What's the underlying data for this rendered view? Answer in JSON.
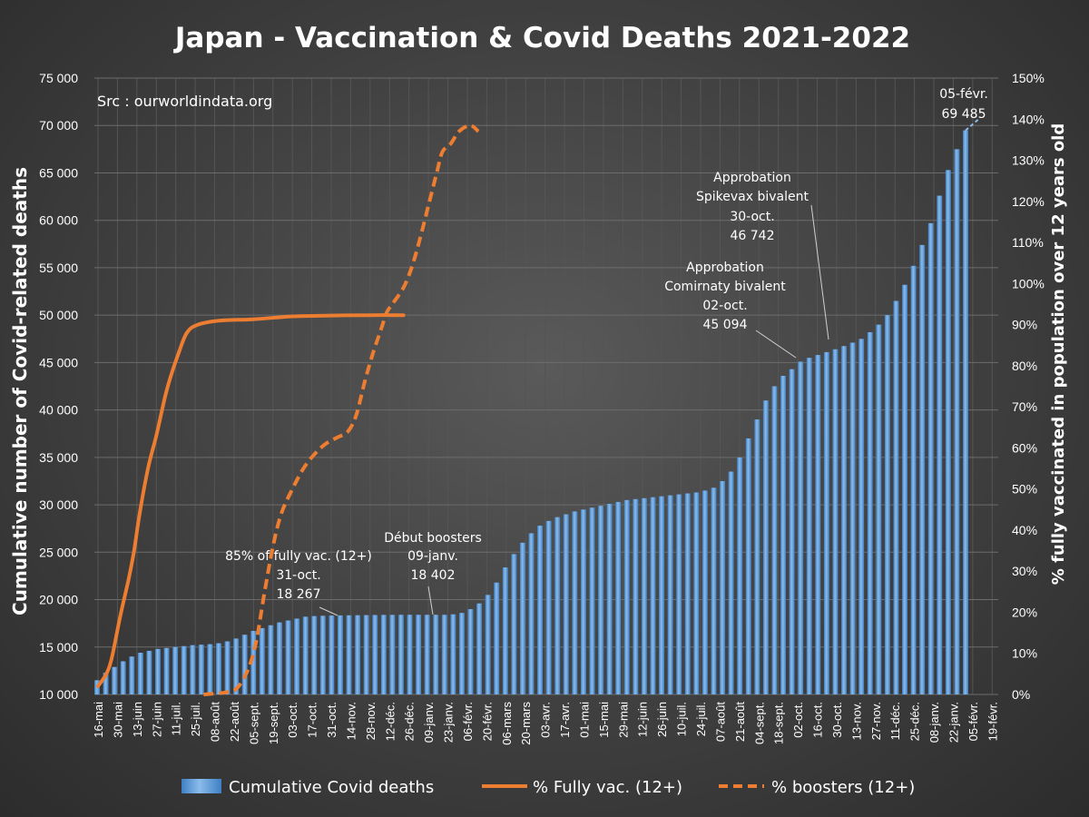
{
  "chart_data": {
    "type": "bar",
    "title": "Japan - Vaccination & Covid Deaths 2021-2022",
    "source": "Src : ourworldindata.org",
    "ylabel": "Cumulative number of Covid-related deaths",
    "y2label": "% fully vaccinated in population over 12 years old",
    "ylim": [
      10000,
      75000
    ],
    "y2lim": [
      0,
      150
    ],
    "yticks": [
      "10 000",
      "15 000",
      "20 000",
      "25 000",
      "30 000",
      "35 000",
      "40 000",
      "45 000",
      "50 000",
      "55 000",
      "60 000",
      "65 000",
      "70 000",
      "75 000"
    ],
    "y2ticks": [
      "0%",
      "10%",
      "20%",
      "30%",
      "40%",
      "50%",
      "60%",
      "70%",
      "80%",
      "90%",
      "100%",
      "110%",
      "120%",
      "130%",
      "140%",
      "150%"
    ],
    "xticks": [
      "16-mai",
      "30-mai",
      "13-juin",
      "27-juin",
      "11-juil.",
      "25-juil.",
      "08-août",
      "22-août",
      "05-sept.",
      "19-sept.",
      "03-oct.",
      "17-oct.",
      "31-oct.",
      "14-nov.",
      "28-nov.",
      "12-déc.",
      "26-déc.",
      "09-janv.",
      "23-janv.",
      "06-févr.",
      "20-févr.",
      "06-mars",
      "20-mars",
      "03-avr.",
      "17-avr.",
      "01-mai",
      "15-mai",
      "29-mai",
      "12-juin",
      "26-juin",
      "10-juil.",
      "24-juil.",
      "07-août",
      "21-août",
      "04-sept.",
      "18-sept.",
      "02-oct.",
      "16-oct.",
      "30-oct.",
      "13-nov.",
      "27-nov.",
      "11-déc.",
      "25-déc.",
      "08-janv.",
      "22-janv.",
      "05-févr.",
      "19-févr."
    ],
    "series": [
      {
        "name": "Cumulative Covid deaths",
        "kind": "bar",
        "values": [
          11500,
          12300,
          12900,
          13500,
          14000,
          14400,
          14600,
          14800,
          14900,
          15000,
          15100,
          15200,
          15250,
          15300,
          15400,
          15600,
          15900,
          16300,
          16700,
          17000,
          17300,
          17600,
          17800,
          18000,
          18200,
          18267,
          18300,
          18320,
          18340,
          18350,
          18360,
          18370,
          18380,
          18390,
          18400,
          18402,
          18402,
          18402,
          18402,
          18402,
          18402,
          18450,
          18600,
          19000,
          19600,
          20500,
          21800,
          23400,
          24800,
          26000,
          27000,
          27800,
          28300,
          28700,
          29000,
          29300,
          29500,
          29700,
          29900,
          30100,
          30300,
          30500,
          30600,
          30700,
          30800,
          30900,
          31000,
          31100,
          31200,
          31300,
          31500,
          31800,
          32500,
          33500,
          35000,
          37000,
          39000,
          41000,
          42500,
          43600,
          44300,
          45094,
          45500,
          45800,
          46100,
          46400,
          46742,
          47100,
          47500,
          48200,
          49000,
          50000,
          51500,
          53200,
          55200,
          57400,
          59700,
          62600,
          65300,
          67500,
          69485
        ]
      },
      {
        "name": "% Fully vac. (12+)",
        "kind": "line",
        "points": [
          [
            0,
            2
          ],
          [
            3,
            5
          ],
          [
            5,
            9
          ],
          [
            8,
            19
          ],
          [
            11,
            28
          ],
          [
            13,
            35
          ],
          [
            15,
            44
          ],
          [
            18,
            55
          ],
          [
            21,
            63
          ],
          [
            24,
            72
          ],
          [
            26,
            77
          ],
          [
            29,
            83
          ],
          [
            32,
            88
          ],
          [
            36,
            90
          ],
          [
            44,
            91
          ],
          [
            56,
            91.3
          ],
          [
            70,
            92
          ],
          [
            84,
            92.2
          ],
          [
            98,
            92.3
          ],
          [
            110,
            92.3
          ]
        ]
      },
      {
        "name": "% boosters (12+)",
        "kind": "dashed-line",
        "points": [
          [
            38,
            0
          ],
          [
            46,
            0.5
          ],
          [
            50,
            1.5
          ],
          [
            54,
            6
          ],
          [
            57,
            13
          ],
          [
            60,
            25
          ],
          [
            63,
            36
          ],
          [
            66,
            44
          ],
          [
            70,
            50
          ],
          [
            74,
            55
          ],
          [
            78,
            58.5
          ],
          [
            82,
            61
          ],
          [
            86,
            62.5
          ],
          [
            90,
            64
          ],
          [
            93,
            68
          ],
          [
            96,
            76
          ],
          [
            99,
            83
          ],
          [
            102,
            89
          ],
          [
            104,
            93
          ],
          [
            106,
            95
          ],
          [
            110,
            99
          ],
          [
            113,
            104
          ],
          [
            116,
            111
          ],
          [
            119,
            119
          ],
          [
            122,
            127
          ],
          [
            124,
            132
          ],
          [
            127,
            134
          ],
          [
            130,
            137
          ],
          [
            134,
            138.5
          ],
          [
            137,
            137
          ]
        ]
      }
    ],
    "annotations": [
      {
        "lines": [
          "85% of fully vac. (12+)",
          "31-oct.",
          "18 267"
        ]
      },
      {
        "lines": [
          "Début boosters",
          "09-janv.",
          "18 402"
        ]
      },
      {
        "lines": [
          "Approbation",
          "Spikevax bivalent",
          "30-oct.",
          "46 742"
        ]
      },
      {
        "lines": [
          "Approbation",
          "Comirnaty bivalent",
          "02-oct.",
          "45 094"
        ]
      },
      {
        "lines": [
          "05-févr.",
          "69 485"
        ]
      }
    ],
    "legend": [
      {
        "label": "Cumulative Covid deaths",
        "kind": "bar",
        "color": "#5b9bd5"
      },
      {
        "label": "% Fully vac. (12+)",
        "kind": "line",
        "color": "#ed7d31"
      },
      {
        "label": "% boosters (12+)",
        "kind": "dashed-line",
        "color": "#ed7d31"
      }
    ],
    "legend_position": "bottom",
    "grid": true,
    "colors": {
      "bar": "#5b9bd5",
      "line": "#ed7d31",
      "background": "#404040"
    }
  }
}
